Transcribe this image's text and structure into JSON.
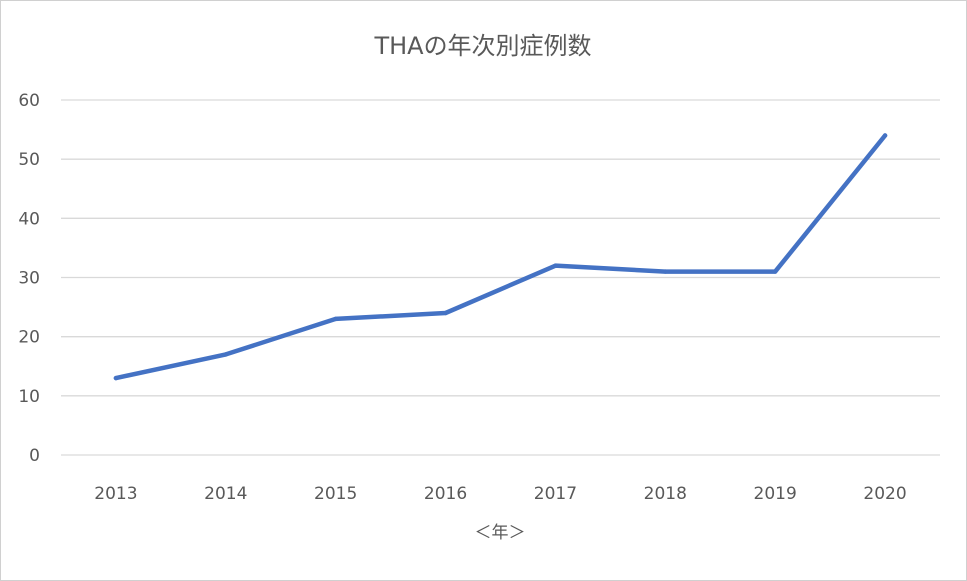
{
  "chart_data": {
    "type": "line",
    "title": "THAの年次別症例数",
    "xlabel": "＜年＞",
    "ylabel": "",
    "categories": [
      "2013",
      "2014",
      "2015",
      "2016",
      "2017",
      "2018",
      "2019",
      "2020"
    ],
    "series": [
      {
        "values": [
          13,
          17,
          23,
          24,
          32,
          31,
          31,
          54
        ]
      }
    ],
    "ylim": [
      0,
      60
    ],
    "yticks": [
      0,
      10,
      20,
      30,
      40,
      50,
      60
    ],
    "grid": true,
    "legend": "none",
    "colors": {
      "series": "#4472c4",
      "grid": "#d9d9d9",
      "text": "#595959"
    }
  }
}
